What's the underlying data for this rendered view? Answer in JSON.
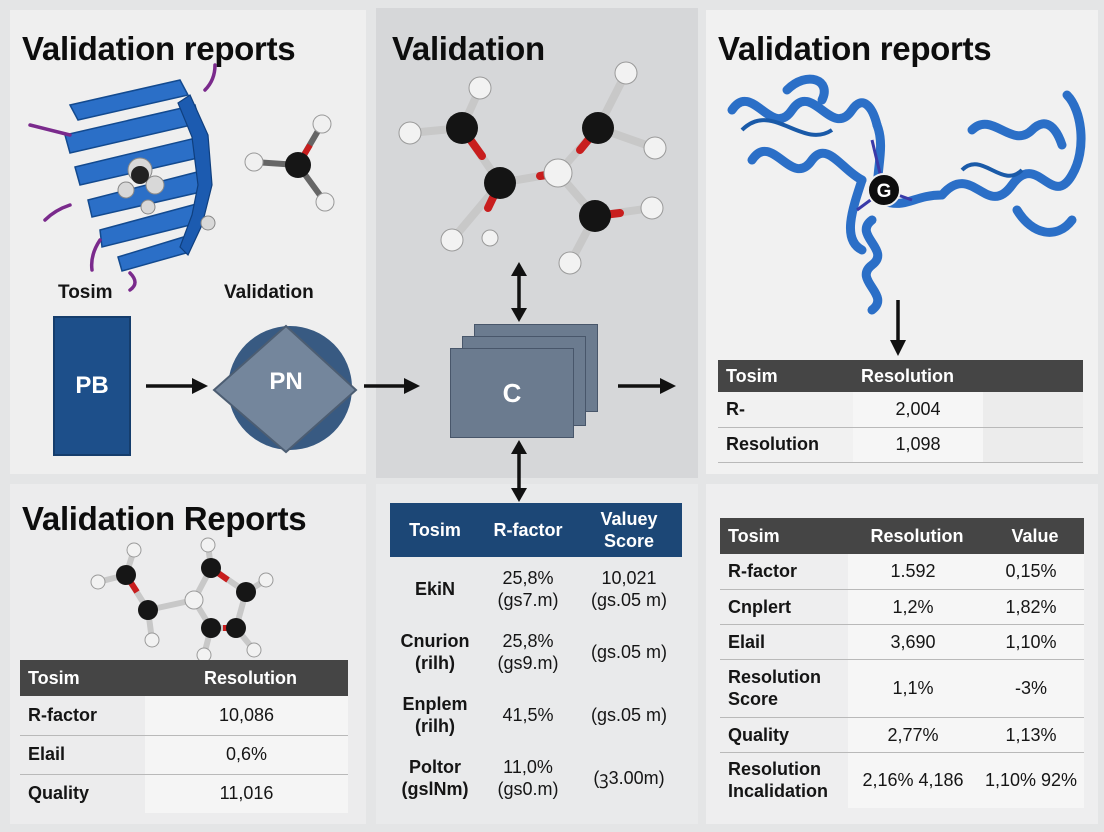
{
  "panels": {
    "top_left": {
      "title": "Validation reports",
      "label_left": "Tosim",
      "label_right": "Validation",
      "box_left": "PB",
      "box_right": "PN"
    },
    "middle": {
      "title": "Validation",
      "box": "C"
    },
    "top_right": {
      "title": "Validation reports",
      "atom_label": "G",
      "table": {
        "headers": [
          "Tosim",
          "Resolution",
          ""
        ],
        "rows": [
          [
            "R-",
            "2,004",
            ""
          ],
          [
            "Resolution",
            "1,098",
            ""
          ]
        ]
      }
    },
    "bottom_left": {
      "title": "Validation Reports",
      "table": {
        "headers": [
          "Tosim",
          "Resolution"
        ],
        "rows": [
          [
            "R-factor",
            "10,086"
          ],
          [
            "Elail",
            "0,6%"
          ],
          [
            "Quality",
            "11,016"
          ]
        ]
      }
    },
    "bottom_middle": {
      "table": {
        "headers": [
          "Tosim",
          "R-factor",
          "Valuey Score"
        ],
        "rows": [
          [
            "EkiN",
            "25,8% (gs7.m)",
            "10,021 (gs.05 m)"
          ],
          [
            "Cnurion (rilh)",
            "25,8% (gs9.m)",
            "(gs.05 m)"
          ],
          [
            "Enplem (rilh)",
            "41,5%",
            "(gs.05 m)"
          ],
          [
            "Poltor (gslNm)",
            "11,0% (gs0.m)",
            "(ꝫ3.00m)"
          ]
        ]
      }
    },
    "bottom_right": {
      "table": {
        "headers": [
          "Tosim",
          "Resolution",
          "Value"
        ],
        "rows": [
          [
            "R-factor",
            "1.592",
            "0,15%"
          ],
          [
            "Cnplert",
            "1,2%",
            "1,82%"
          ],
          [
            "Elail",
            "3,690",
            "1,10%"
          ],
          [
            "Resolution Score",
            "1,1%",
            "-3%"
          ],
          [
            "Quality",
            "2,77%",
            "1,13%"
          ],
          [
            "Resolution Incalidation",
            "2,16% 4,186",
            "1,10% 92%"
          ]
        ]
      }
    }
  },
  "colors": {
    "ribbon_blue": "#2b6fc7",
    "dark_blue": "#1d4f8a",
    "slate": "#6b7b8f",
    "table_header": "#454545",
    "atom_red": "#c81e1e"
  }
}
